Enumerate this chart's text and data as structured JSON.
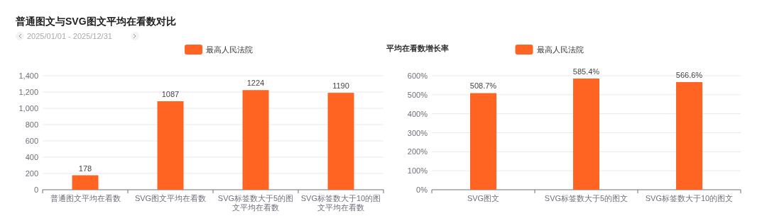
{
  "chart_data": [
    {
      "type": "bar",
      "title": "普通图文与SVG图文平均在看数对比",
      "subtitle": "2025/01/01  -  2025/12/31",
      "categories": [
        "普通图文平均在看数",
        "SVG图文平均在看数",
        "SVG标签数大于5的图文平均在看数",
        "SVG标签数大于10的图文平均在看数"
      ],
      "series": [
        {
          "name": "最高人民法院",
          "color": "#ff6423",
          "values": [
            178,
            1087,
            1224,
            1190
          ]
        }
      ],
      "ylim": [
        0,
        1400
      ],
      "yticks": [
        0,
        200,
        400,
        600,
        800,
        {
          "value": 1000,
          "label": "1,000"
        },
        {
          "value": 1200,
          "label": "1,200"
        },
        {
          "value": 1400,
          "label": "1,400"
        }
      ],
      "grid": "y",
      "legend": "top",
      "data_labels": true
    },
    {
      "type": "bar",
      "title": "平均在看数增长率",
      "categories": [
        "SVG图文",
        "SVG标签数大于5的图文",
        "SVG标签数大于10的图文"
      ],
      "series": [
        {
          "name": "最高人民法院",
          "color": "#ff6423",
          "values": [
            508.7,
            585.4,
            566.6
          ],
          "value_labels": [
            "508.7%",
            "585.4%",
            "566.6%"
          ]
        }
      ],
      "ylim": [
        0,
        600
      ],
      "yticks": [
        {
          "value": 0,
          "label": "0%"
        },
        {
          "value": 100,
          "label": "100%"
        },
        {
          "value": 200,
          "label": "200%"
        },
        {
          "value": 300,
          "label": "300%"
        },
        {
          "value": 400,
          "label": "400%"
        },
        {
          "value": 500,
          "label": "500%"
        },
        {
          "value": 600,
          "label": "600%"
        }
      ],
      "grid": "y",
      "legend": "top"
    }
  ]
}
